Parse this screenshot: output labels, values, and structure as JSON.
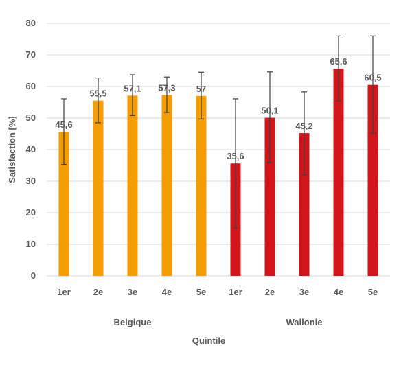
{
  "chart_data": {
    "type": "bar",
    "ylabel": "Satisfaction  [%]",
    "xlabel": "Quintile",
    "ylim": [
      0,
      80
    ],
    "yticks": [
      0,
      10,
      20,
      30,
      40,
      50,
      60,
      70,
      80
    ],
    "grid": true,
    "groups": [
      {
        "name": "Belgique",
        "color": "#f59c00",
        "categories": [
          "1er",
          "2e",
          "3e",
          "4e",
          "5e"
        ],
        "values": [
          45.6,
          55.5,
          57.1,
          57.3,
          57
        ],
        "value_labels": [
          "45,6",
          "55,5",
          "57,1",
          "57,3",
          "57"
        ],
        "error_low": [
          35.3,
          48.5,
          50.8,
          51.7,
          49.7
        ],
        "error_high": [
          56.1,
          62.7,
          63.7,
          63.0,
          64.5
        ]
      },
      {
        "name": "Wallonie",
        "color": "#d0161b",
        "categories": [
          "1er",
          "2e",
          "3e",
          "4e",
          "5e"
        ],
        "values": [
          35.6,
          50.1,
          45.2,
          65.6,
          60.5
        ],
        "value_labels": [
          "35,6",
          "50,1",
          "45,2",
          "65,6",
          "60,5"
        ],
        "error_low": [
          15.2,
          35.8,
          32.0,
          55.4,
          45.2
        ],
        "error_high": [
          56.1,
          64.6,
          58.3,
          76.0,
          76.0
        ]
      }
    ]
  }
}
